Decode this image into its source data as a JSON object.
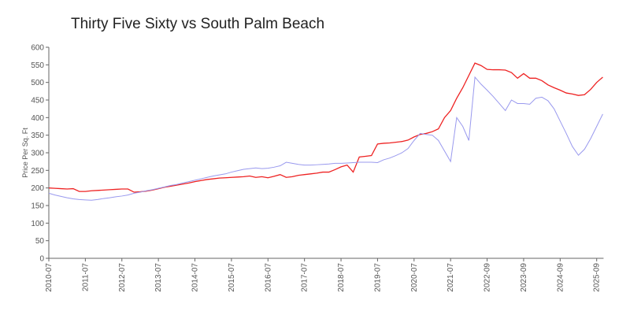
{
  "chart_data": {
    "type": "line",
    "title": "Thirty Five Sixty vs South Palm Beach",
    "y_label": "Price Per Sq. Ft",
    "categories": [
      "2010-07",
      null,
      null,
      null,
      null,
      null,
      "2011-07",
      null,
      null,
      null,
      null,
      null,
      "2012-07",
      null,
      null,
      null,
      null,
      null,
      "2013-07",
      null,
      null,
      null,
      null,
      null,
      "2014-07",
      null,
      null,
      null,
      null,
      null,
      "2015-07",
      null,
      null,
      null,
      null,
      null,
      "2016-07",
      null,
      null,
      null,
      null,
      null,
      "2017-07",
      null,
      null,
      null,
      null,
      null,
      "2018-07",
      null,
      null,
      null,
      null,
      null,
      "2019-07",
      null,
      null,
      null,
      null,
      null,
      "2020-07",
      null,
      null,
      null,
      null,
      null,
      "2021-07",
      null,
      null,
      null,
      null,
      null,
      "2022-09",
      null,
      null,
      null,
      null,
      null,
      "2023-09",
      null,
      null,
      null,
      null,
      null,
      "2024-09",
      null,
      null,
      null,
      null,
      null,
      "2025-09",
      null
    ],
    "series": [
      {
        "color": "#ee2222",
        "values": [
          200,
          199,
          198,
          197,
          198,
          190,
          190,
          192,
          193,
          194,
          195,
          196,
          197,
          197,
          188,
          189,
          191,
          194,
          198,
          202,
          205,
          208,
          211,
          214,
          218,
          221,
          224,
          226,
          228,
          229,
          230,
          231,
          232,
          234,
          230,
          232,
          229,
          233,
          238,
          230,
          232,
          236,
          238,
          240,
          242,
          245,
          245,
          252,
          260,
          265,
          245,
          288,
          290,
          292,
          325,
          327,
          328,
          330,
          332,
          336,
          345,
          352,
          355,
          360,
          368,
          400,
          420,
          455,
          485,
          520,
          555,
          548,
          537,
          536,
          536,
          535,
          528,
          512,
          525,
          512,
          512,
          505,
          493,
          485,
          478,
          470,
          467,
          463,
          465,
          480,
          500,
          515
        ]
      },
      {
        "color": "#9999ee",
        "values": [
          185,
          180,
          176,
          172,
          169,
          167,
          166,
          165,
          167,
          170,
          172,
          175,
          177,
          180,
          185,
          188,
          192,
          195,
          199,
          203,
          207,
          210,
          214,
          218,
          222,
          226,
          230,
          234,
          237,
          240,
          245,
          249,
          253,
          255,
          257,
          255,
          256,
          259,
          263,
          273,
          270,
          267,
          265,
          265,
          266,
          267,
          268,
          270,
          270,
          271,
          272,
          273,
          273,
          273,
          272,
          280,
          285,
          292,
          300,
          312,
          335,
          355,
          352,
          350,
          335,
          305,
          275,
          400,
          375,
          335,
          515,
          495,
          478,
          460,
          440,
          420,
          450,
          440,
          440,
          438,
          455,
          458,
          448,
          425,
          390,
          355,
          318,
          293,
          310,
          340,
          375,
          410
        ]
      }
    ],
    "ylim": [
      0,
      600
    ],
    "yticks": [
      0,
      50,
      100,
      150,
      200,
      250,
      300,
      350,
      400,
      450,
      500,
      550,
      600
    ]
  }
}
